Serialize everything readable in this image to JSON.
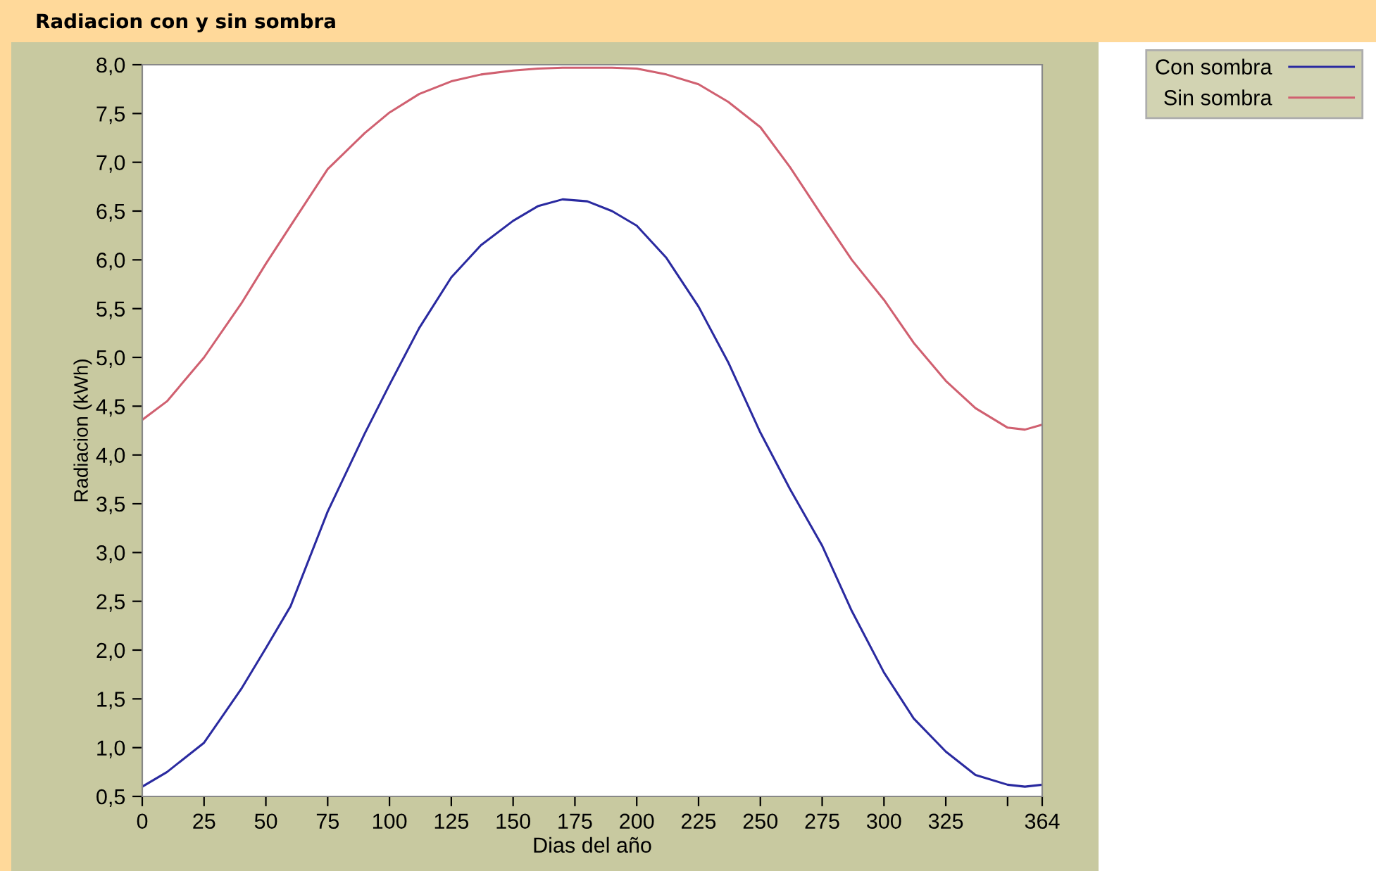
{
  "chart_data": {
    "type": "line",
    "title": "Radiacion con y sin sombra",
    "xlabel": "Dias del año",
    "ylabel": "Radiacion (kWh)",
    "x": [
      0,
      10,
      25,
      40,
      50,
      60,
      75,
      90,
      100,
      112,
      125,
      137,
      150,
      160,
      170,
      180,
      190,
      200,
      212,
      225,
      237,
      250,
      262,
      275,
      287,
      300,
      312,
      325,
      337,
      350,
      357,
      364
    ],
    "series": [
      {
        "name": "Con sombra",
        "color": "#2a2aa0",
        "values": [
          0.6,
          0.75,
          1.05,
          1.6,
          2.02,
          2.45,
          3.42,
          4.22,
          4.72,
          5.3,
          5.82,
          6.15,
          6.4,
          6.55,
          6.62,
          6.6,
          6.5,
          6.35,
          6.02,
          5.52,
          4.95,
          4.23,
          3.65,
          3.07,
          2.4,
          1.77,
          1.3,
          0.96,
          0.72,
          0.62,
          0.6,
          0.62
        ]
      },
      {
        "name": "Sin sombra",
        "color": "#d06070",
        "values": [
          4.36,
          4.55,
          5.0,
          5.55,
          5.96,
          6.35,
          6.93,
          7.3,
          7.51,
          7.7,
          7.83,
          7.9,
          7.94,
          7.96,
          7.97,
          7.97,
          7.97,
          7.96,
          7.9,
          7.8,
          7.62,
          7.36,
          6.95,
          6.45,
          6.0,
          5.59,
          5.15,
          4.76,
          4.48,
          4.28,
          4.26,
          4.31
        ]
      }
    ],
    "xlim": [
      0,
      364
    ],
    "ylim": [
      0.5,
      8.0
    ],
    "xticks": [
      0,
      25,
      50,
      75,
      100,
      125,
      150,
      175,
      200,
      225,
      250,
      275,
      300,
      325,
      {
        "value": 350,
        "label": null
      },
      364
    ],
    "yticks": [
      {
        "value": 0.5,
        "label": "0,5"
      },
      {
        "value": 1.0,
        "label": "1,0"
      },
      {
        "value": 1.5,
        "label": "1,5"
      },
      {
        "value": 2.0,
        "label": "2,0"
      },
      {
        "value": 2.5,
        "label": "2,5"
      },
      {
        "value": 3.0,
        "label": "3,0"
      },
      {
        "value": 3.5,
        "label": "3,5"
      },
      {
        "value": 4.0,
        "label": "4,0"
      },
      {
        "value": 4.5,
        "label": "4,5"
      },
      {
        "value": 5.0,
        "label": "5,0"
      },
      {
        "value": 5.5,
        "label": "5,5"
      },
      {
        "value": 6.0,
        "label": "6,0"
      },
      {
        "value": 6.5,
        "label": "6,5"
      },
      {
        "value": 7.0,
        "label": "7,0"
      },
      {
        "value": 7.5,
        "label": "7,5"
      },
      {
        "value": 8.0,
        "label": "8,0"
      }
    ],
    "legend": "top right",
    "grid": false,
    "marker": "none",
    "line_style": "solid"
  }
}
